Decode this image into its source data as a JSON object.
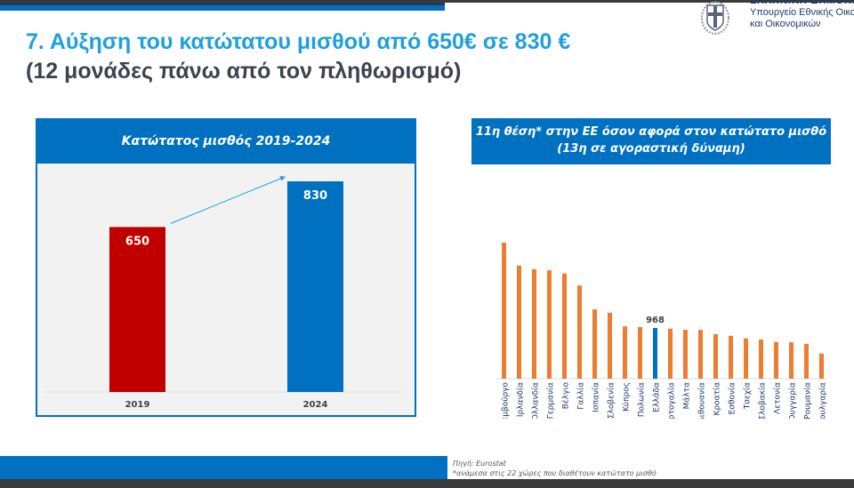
{
  "header": {
    "republic": "ΕΛΛΗΝΙΚΗ ΔΗΜΟΚΡΑΤΙΑ",
    "ministry_line1": "Υπουργείο Εθνικής Οικονομίας",
    "ministry_line2": "και Οικονομικών",
    "title": "7. Αύξηση του κατώτατου μισθού από 650€ σε 830 €",
    "subtitle": "(12 μονάδες πάνω από τον πληθωρισμό)"
  },
  "colors": {
    "blue": "#0070c0",
    "red": "#c00000",
    "orange": "#ed7d31",
    "title": "#1ea0dc"
  },
  "chart_data": [
    {
      "type": "bar",
      "title": "Κατώτατος μισθός 2019-2024",
      "categories": [
        "2019",
        "2024"
      ],
      "values": [
        650,
        830
      ],
      "colors": [
        "#c00000",
        "#0070c0"
      ],
      "ylim": [
        0,
        830
      ],
      "annotation": "arrow from 2019 to 2024"
    },
    {
      "type": "bar",
      "title_line1": "11η θέση* στην ΕΕ όσον αφορά στον κατώτατο μισθό",
      "title_line2": "(13η σε αγοραστική δύναμη)",
      "categories": [
        "Λουξεμβούργο",
        "Ιρλανδία",
        "Ολλανδία",
        "Γερμανία",
        "Βέλγιο",
        "Γαλλία",
        "Ισπανία",
        "Σλοβενία",
        "Κύπρος",
        "Πολωνία",
        "Ελλάδα",
        "Πορτογαλία",
        "Μάλτα",
        "Λιθουανία",
        "Κροατία",
        "Εσθονία",
        "Τσεχία",
        "Σλοβακία",
        "Λετονία",
        "Ουγγαρία",
        "Ρουμανία",
        "Βουλγαρία"
      ],
      "values": [
        2600,
        2160,
        2090,
        2070,
        2010,
        1780,
        1325,
        1260,
        1000,
        985,
        968,
        955,
        935,
        930,
        850,
        820,
        770,
        750,
        700,
        695,
        665,
        480
      ],
      "highlight_index": 10,
      "highlight_label": "968"
    }
  ],
  "footer": {
    "source": "Πηγή: Eurostat",
    "note": "*ανάμεσα στις 22 χώρες που διαθέτουν κατώτατο μισθό"
  }
}
